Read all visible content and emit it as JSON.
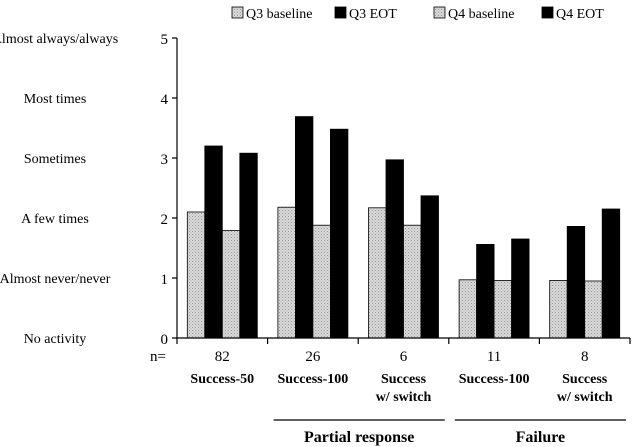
{
  "chart_data": {
    "type": "bar",
    "legend": {
      "position": "top-right",
      "items": [
        {
          "name": "Q3 baseline",
          "color": "#d6d6d6",
          "pattern": "dotted-gray"
        },
        {
          "name": "Q3 EOT",
          "color": "#000000"
        },
        {
          "name": "Q4 baseline",
          "color": "#d6d6d6",
          "pattern": "dotted-gray"
        },
        {
          "name": "Q4 EOT",
          "color": "#000000"
        }
      ]
    },
    "ylim": [
      0,
      5
    ],
    "yticks": [
      0,
      1,
      2,
      3,
      4,
      5
    ],
    "ylabels": [
      "No activity",
      "Almost never/never",
      "A few times",
      "Sometimes",
      "Most times",
      "Almost always/always"
    ],
    "n_prefix": "n=",
    "categories": [
      {
        "label": [
          "Success-50"
        ],
        "n": "82"
      },
      {
        "label": [
          "Success-100"
        ],
        "n": "26"
      },
      {
        "label": [
          "Success",
          "w/ switch"
        ],
        "n": "6"
      },
      {
        "label": [
          "Success-100"
        ],
        "n": "11"
      },
      {
        "label": [
          "Success",
          "w/ switch"
        ],
        "n": "8"
      }
    ],
    "series": [
      {
        "name": "Q3 baseline",
        "values": [
          2.1,
          2.18,
          2.17,
          0.97,
          0.96
        ]
      },
      {
        "name": "Q3 EOT",
        "values": [
          3.2,
          3.69,
          2.97,
          1.56,
          1.86
        ]
      },
      {
        "name": "Q4 baseline",
        "values": [
          1.79,
          1.88,
          1.88,
          0.96,
          0.95
        ]
      },
      {
        "name": "Q4 EOT",
        "values": [
          3.08,
          3.48,
          2.37,
          1.65,
          2.15
        ]
      }
    ],
    "groups": [
      {
        "label": "Partial response",
        "categories": [
          1,
          2
        ]
      },
      {
        "label": "Failure",
        "categories": [
          3,
          4
        ]
      }
    ],
    "grid": false
  }
}
